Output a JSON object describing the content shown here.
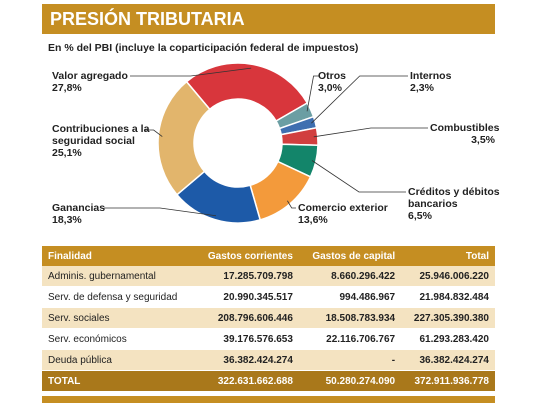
{
  "chart_data": {
    "type": "donut",
    "title": "PRESIÓN TRIBUTARIA",
    "subtitle": "En % del PBI (incluye la coparticipación federal de impuestos)",
    "categories": [
      "Valor agregado",
      "Otros",
      "Internos",
      "Combustibles",
      "Créditos y débitos bancarios",
      "Comercio exterior",
      "Ganancias",
      "Contribuciones a la seguridad social"
    ],
    "values": [
      27.8,
      3.0,
      2.3,
      3.5,
      6.5,
      13.6,
      18.3,
      25.1
    ],
    "value_labels": [
      "27,8%",
      "3,0%",
      "2,3%",
      "3,5%",
      "6,5%",
      "13,6%",
      "18,3%",
      "25,1%"
    ],
    "colors": [
      "#d8363c",
      "#6b9ea3",
      "#3f6fb0",
      "#d13f3f",
      "#13856a",
      "#f39a3b",
      "#1d5aa8",
      "#e2b56c"
    ]
  },
  "table": {
    "header": [
      "Finalidad",
      "Gastos corrientes",
      "Gastos de capital",
      "Total"
    ],
    "rows": [
      [
        "Adminis. gubernamental",
        "17.285.709.798",
        "8.660.296.422",
        "25.946.006.220"
      ],
      [
        "Serv. de defensa y seguridad",
        "20.990.345.517",
        "994.486.967",
        "21.984.832.484"
      ],
      [
        "Serv. sociales",
        "208.796.606.446",
        "18.508.783.934",
        "227.305.390.380"
      ],
      [
        "Serv. económicos",
        "39.176.576.653",
        "22.116.706.767",
        "61.293.283.420"
      ],
      [
        "Deuda pública",
        "36.382.424.274",
        "-",
        "36.382.424.274"
      ]
    ],
    "total": [
      "TOTAL",
      "322.631.662.688",
      "50.280.274.090",
      "372.911.936.778"
    ]
  }
}
